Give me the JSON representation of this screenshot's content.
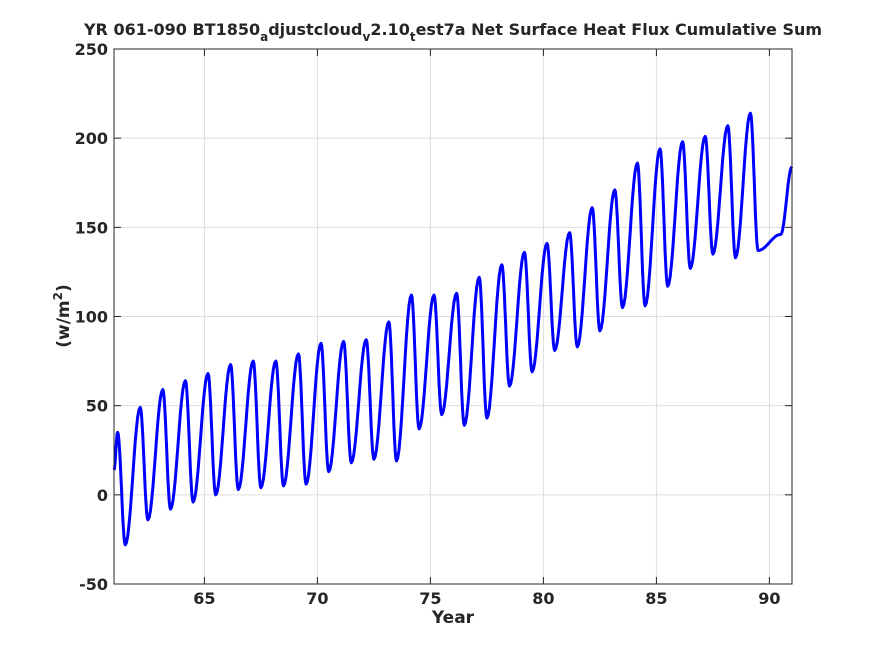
{
  "chart_data": {
    "type": "line",
    "title_parts": [
      {
        "t": "YR 061-090 BT1850",
        "sub": false
      },
      {
        "t": "a",
        "sub": true
      },
      {
        "t": "djustcloud",
        "sub": false
      },
      {
        "t": "v",
        "sub": true
      },
      {
        "t": "2.10",
        "sub": false
      },
      {
        "t": "t",
        "sub": true
      },
      {
        "t": "est7a Net Surface Heat Flux  Cumulative Sum",
        "sub": false
      }
    ],
    "xlabel": "Year",
    "ylabel_main": "(w/m",
    "ylabel_sup": "2",
    "ylabel_close": ")",
    "xlim": [
      61,
      91
    ],
    "ylim": [
      -50,
      250
    ],
    "xticks": [
      65,
      70,
      75,
      80,
      85,
      90
    ],
    "yticks": [
      -50,
      0,
      50,
      100,
      150,
      200,
      250
    ],
    "grid": true,
    "line_color": "#0000ff",
    "series": [
      {
        "year_start": 61,
        "year_end": 91,
        "annual_peaks": [
          35,
          49,
          59,
          64,
          68,
          73,
          75,
          75,
          79,
          85,
          86,
          87,
          97,
          112,
          112,
          113,
          122,
          129,
          136,
          141,
          147,
          161,
          171,
          186,
          194,
          198,
          201,
          207,
          214
        ],
        "annual_troughs": [
          -28,
          -14,
          -8,
          -4,
          0,
          3,
          4,
          5,
          6,
          13,
          18,
          20,
          19,
          37,
          45,
          39,
          43,
          61,
          69,
          81,
          83,
          92,
          105,
          106,
          117,
          127,
          135,
          133,
          137,
          146
        ]
      }
    ]
  }
}
